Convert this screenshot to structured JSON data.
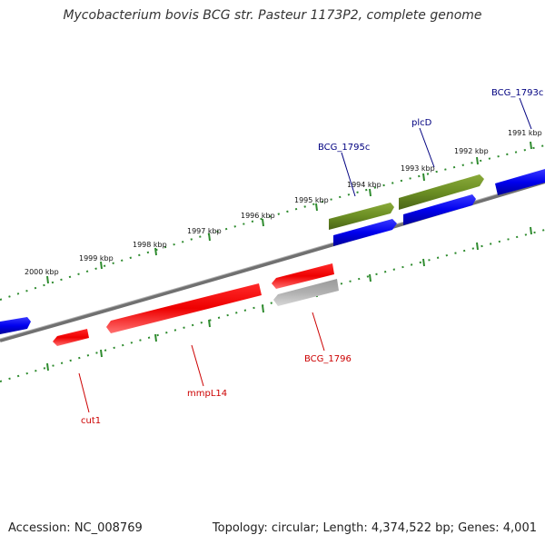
{
  "title": "Mycobacterium bovis BCG str. Pasteur 1173P2, complete genome",
  "footer": {
    "accession": "Accession: NC_008769",
    "topology": "Topology: circular; Length: 4,374,522 bp; Genes: 4,001"
  },
  "colors": {
    "forward_gene": "#0000ee",
    "forward_gene_alt": "#6b8e23",
    "reverse_gene": "#ee0000",
    "pseudo_gene": "#b0b0b0",
    "backbone": "#808080",
    "ticks": "#2e8b2e",
    "forward_label": "#000080",
    "reverse_label": "#cc0000"
  },
  "ticks": [
    {
      "label": "1991 kbp"
    },
    {
      "label": "1992 kbp"
    },
    {
      "label": "1993 kbp"
    },
    {
      "label": "1994 kbp"
    },
    {
      "label": "1995 kbp"
    },
    {
      "label": "1996 kbp"
    },
    {
      "label": "1997 kbp"
    },
    {
      "label": "1998 kbp"
    },
    {
      "label": "1999 kbp"
    },
    {
      "label": "2000 kbp"
    }
  ],
  "genes_forward": [
    {
      "name": "BCG_1793c",
      "color": "forward_gene"
    },
    {
      "name": "plcD",
      "color": "forward_gene_alt"
    },
    {
      "name": "BCG_1795c",
      "color": "forward_gene_alt"
    }
  ],
  "genes_reverse": [
    {
      "name": "BCG_1796",
      "color": "pseudo_gene"
    },
    {
      "name": "mmpL14",
      "color": "reverse_gene"
    },
    {
      "name": "cut1",
      "color": "reverse_gene"
    }
  ]
}
